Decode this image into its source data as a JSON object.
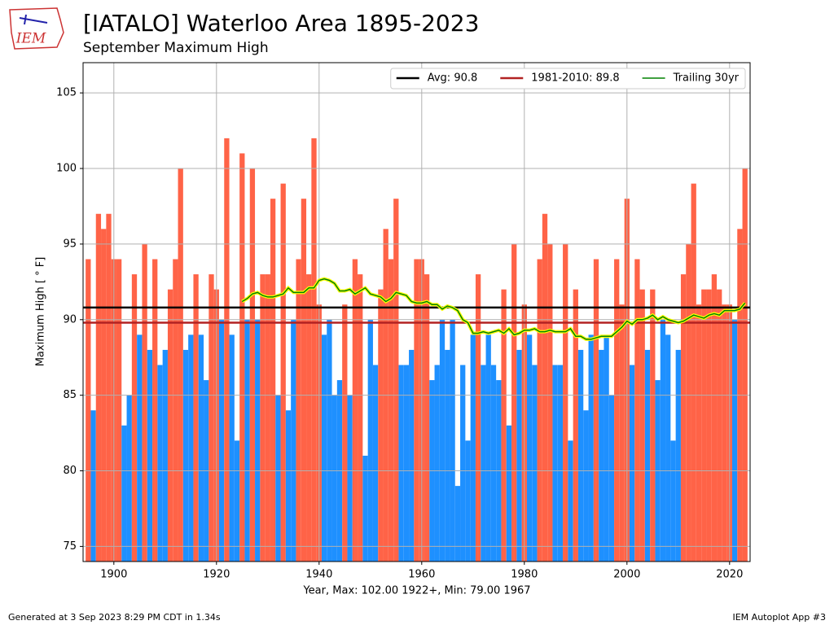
{
  "logo_text": "IEM",
  "chart_data": {
    "type": "bar",
    "title": "[IATALO] Waterloo Area 1895-2023",
    "subtitle": "September Maximum High",
    "ylabel": "Maximum High [ ° F]",
    "xlabel": "Year, Max: 102.00 1922+, Min: 79.00 1967",
    "x": [
      1895,
      1896,
      1897,
      1898,
      1899,
      1900,
      1901,
      1902,
      1903,
      1904,
      1905,
      1906,
      1907,
      1908,
      1909,
      1910,
      1911,
      1912,
      1913,
      1914,
      1915,
      1916,
      1917,
      1918,
      1919,
      1920,
      1921,
      1922,
      1923,
      1924,
      1925,
      1926,
      1927,
      1928,
      1929,
      1930,
      1931,
      1932,
      1933,
      1934,
      1935,
      1936,
      1937,
      1938,
      1939,
      1940,
      1941,
      1942,
      1943,
      1944,
      1945,
      1946,
      1947,
      1948,
      1949,
      1950,
      1951,
      1952,
      1953,
      1954,
      1955,
      1956,
      1957,
      1958,
      1959,
      1960,
      1961,
      1962,
      1963,
      1964,
      1965,
      1966,
      1967,
      1968,
      1969,
      1970,
      1971,
      1972,
      1973,
      1974,
      1975,
      1976,
      1977,
      1978,
      1979,
      1980,
      1981,
      1982,
      1983,
      1984,
      1985,
      1986,
      1987,
      1988,
      1989,
      1990,
      1991,
      1992,
      1993,
      1994,
      1995,
      1996,
      1997,
      1998,
      1999,
      2000,
      2001,
      2002,
      2003,
      2004,
      2005,
      2006,
      2007,
      2008,
      2009,
      2010,
      2011,
      2012,
      2013,
      2014,
      2015,
      2016,
      2017,
      2018,
      2019,
      2020,
      2021,
      2022,
      2023
    ],
    "values": [
      94,
      84,
      97,
      96,
      97,
      94,
      94,
      83,
      85,
      93,
      89,
      95,
      88,
      94,
      87,
      88,
      92,
      94,
      100,
      88,
      89,
      93,
      89,
      86,
      93,
      92,
      90,
      102,
      89,
      82,
      101,
      90,
      100,
      90,
      93,
      93,
      98,
      85,
      99,
      84,
      90,
      94,
      98,
      93,
      102,
      91,
      89,
      90,
      85,
      86,
      91,
      85,
      94,
      93,
      81,
      90,
      87,
      92,
      96,
      94,
      98,
      87,
      87,
      88,
      94,
      94,
      93,
      86,
      87,
      90,
      88,
      90,
      79,
      87,
      82,
      89,
      93,
      87,
      89,
      87,
      86,
      92,
      83,
      95,
      88,
      91,
      89,
      87,
      94,
      97,
      95,
      87,
      87,
      95,
      82,
      92,
      88,
      84,
      89,
      94,
      88,
      89,
      85,
      94,
      91,
      98,
      87,
      94,
      92,
      88,
      92,
      86,
      90,
      89,
      82,
      88,
      93,
      95,
      99,
      91,
      92,
      92,
      93,
      92,
      91,
      91,
      90,
      96,
      100
    ],
    "above_color": "#ff6347",
    "below_color": "#1e90ff",
    "reference_lines": [
      {
        "name": "Avg: 90.8",
        "value": 90.8,
        "color": "#000000"
      },
      {
        "name": "1981-2010: 89.8",
        "value": 89.8,
        "color": "#b22222"
      }
    ],
    "series": [
      {
        "name": "Trailing 30yr",
        "color": "#008000",
        "outline": "#ffff00",
        "values": [
          null,
          null,
          null,
          null,
          null,
          null,
          null,
          null,
          null,
          null,
          null,
          null,
          null,
          null,
          null,
          null,
          null,
          null,
          null,
          null,
          null,
          null,
          null,
          null,
          null,
          null,
          null,
          null,
          null,
          null,
          91.2,
          91.4,
          91.7,
          91.8,
          91.6,
          91.5,
          91.5,
          91.6,
          91.7,
          92.1,
          91.8,
          91.8,
          91.8,
          92.1,
          92.1,
          92.6,
          92.7,
          92.6,
          92.4,
          91.9,
          91.9,
          92.0,
          91.7,
          91.9,
          92.1,
          91.7,
          91.6,
          91.5,
          91.2,
          91.4,
          91.8,
          91.7,
          91.6,
          91.2,
          91.1,
          91.1,
          91.2,
          91.0,
          91.0,
          90.7,
          90.9,
          90.8,
          90.6,
          90.0,
          89.8,
          89.1,
          89.1,
          89.2,
          89.1,
          89.2,
          89.3,
          89.1,
          89.4,
          89.0,
          89.1,
          89.3,
          89.3,
          89.4,
          89.2,
          89.2,
          89.3,
          89.2,
          89.2,
          89.2,
          89.4,
          88.9,
          88.9,
          88.7,
          88.7,
          88.8,
          88.9,
          88.9,
          88.9,
          89.2,
          89.5,
          89.9,
          89.7,
          90.0,
          90.0,
          90.1,
          90.3,
          90.0,
          90.2,
          90.0,
          89.9,
          89.8,
          89.9,
          90.1,
          90.3,
          90.2,
          90.1,
          90.3,
          90.4,
          90.3,
          90.6,
          90.6,
          90.6,
          90.7,
          91.1
        ]
      }
    ],
    "xlim": [
      1894,
      2024
    ],
    "xticks": [
      1900,
      1920,
      1940,
      1960,
      1980,
      2000,
      2020
    ],
    "ylim": [
      74,
      107
    ],
    "yticks": [
      75,
      80,
      85,
      90,
      95,
      100,
      105
    ],
    "grid": true,
    "legend": "upper right",
    "footer_left": "Generated at 3 Sep 2023 8:29 PM CDT in 1.34s",
    "footer_right": "IEM Autoplot App #3"
  }
}
